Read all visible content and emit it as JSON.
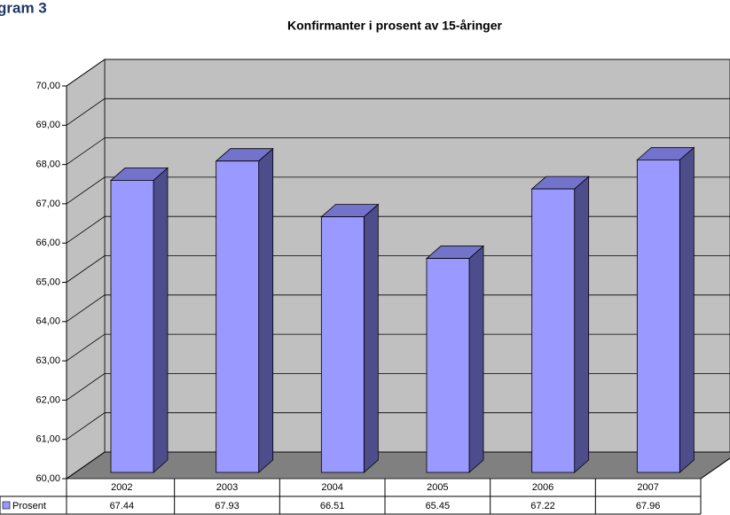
{
  "chart_data": {
    "type": "bar3d",
    "heading": "gram 3",
    "title": "Konfirmanter i prosent  av 15-åringer",
    "categories": [
      "2002",
      "2003",
      "2004",
      "2005",
      "2006",
      "2007"
    ],
    "series": [
      {
        "name": "Prosent",
        "color": "#9999ff",
        "values": [
          67.44,
          67.93,
          66.51,
          65.45,
          67.22,
          67.96
        ]
      }
    ],
    "ylim": [
      60,
      70
    ],
    "yticks": [
      {
        "value": 60,
        "label": "60,00"
      },
      {
        "value": 61,
        "label": "61,00"
      },
      {
        "value": 62,
        "label": "62,00"
      },
      {
        "value": 63,
        "label": "63,00"
      },
      {
        "value": 64,
        "label": "64,00"
      },
      {
        "value": 65,
        "label": "65,00"
      },
      {
        "value": 66,
        "label": "66,00"
      },
      {
        "value": 67,
        "label": "67,00"
      },
      {
        "value": 68,
        "label": "68,00"
      },
      {
        "value": 69,
        "label": "69,00"
      },
      {
        "value": 70,
        "label": "70,00"
      }
    ],
    "grid": true,
    "data_table": true
  }
}
